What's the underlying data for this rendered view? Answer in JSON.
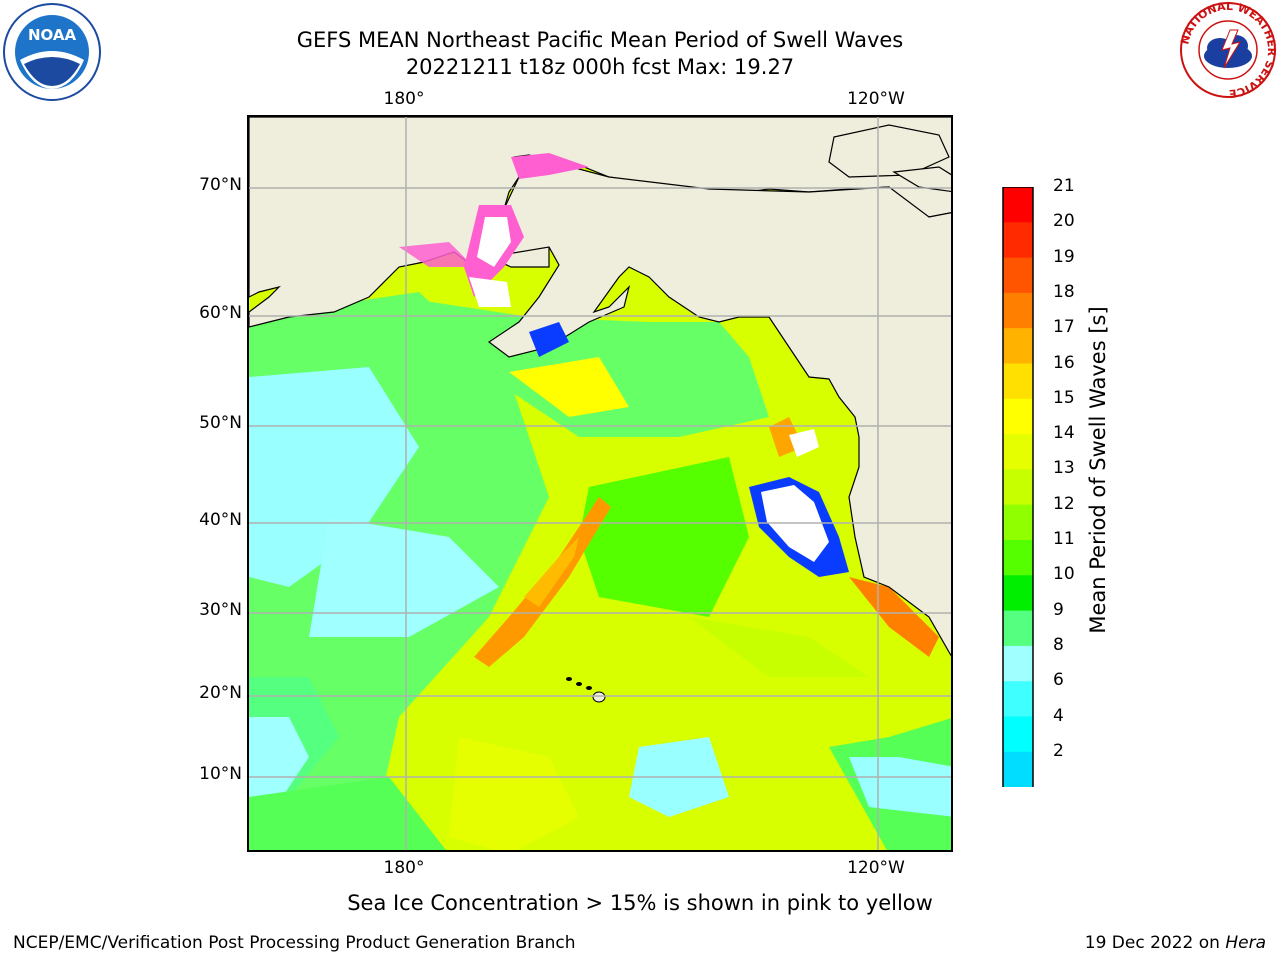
{
  "title": {
    "line1": "GEFS MEAN Northeast Pacific Mean Period of Swell Waves",
    "line2": "20221211 t18z 000h fcst   Max: 19.27"
  },
  "map": {
    "lat_labels": [
      "70°N",
      "60°N",
      "50°N",
      "40°N",
      "30°N",
      "20°N",
      "10°N"
    ],
    "lon_labels_top": [
      "180°",
      "120°W"
    ],
    "lon_labels_bottom": [
      "180°",
      "120°W"
    ],
    "colors": {
      "land": "#efeedd",
      "ice": "#ff5fd0",
      "grid": "#b0b0b0"
    }
  },
  "colorbar": {
    "label": "Mean Period of Swell Waves [s]",
    "ticks": [
      "21",
      "20",
      "19",
      "18",
      "17",
      "16",
      "15",
      "14",
      "13",
      "12",
      "11",
      "10",
      "9",
      "8",
      "6",
      "4",
      "2"
    ],
    "colors": [
      "#ff0000",
      "#ff2a00",
      "#ff5500",
      "#ff8000",
      "#ffb300",
      "#ffe000",
      "#ffff00",
      "#e6ff00",
      "#c8ff00",
      "#90ff00",
      "#55ff00",
      "#00ee00",
      "#55ff80",
      "#a0ffff",
      "#40ffff",
      "#00ffff",
      "#00ddff",
      "#0080ff",
      "#0000ff"
    ]
  },
  "note": "Sea Ice Concentration > 15% is shown in pink to yellow",
  "footer": {
    "left": "NCEP/EMC/Verification Post Processing Product Generation Branch",
    "right_prefix": "19 Dec 2022 on ",
    "right_host": "Hera"
  },
  "logos": {
    "noaa_text": "NOAA",
    "nws_ring": "NATIONAL WEATHER SERVICE"
  }
}
